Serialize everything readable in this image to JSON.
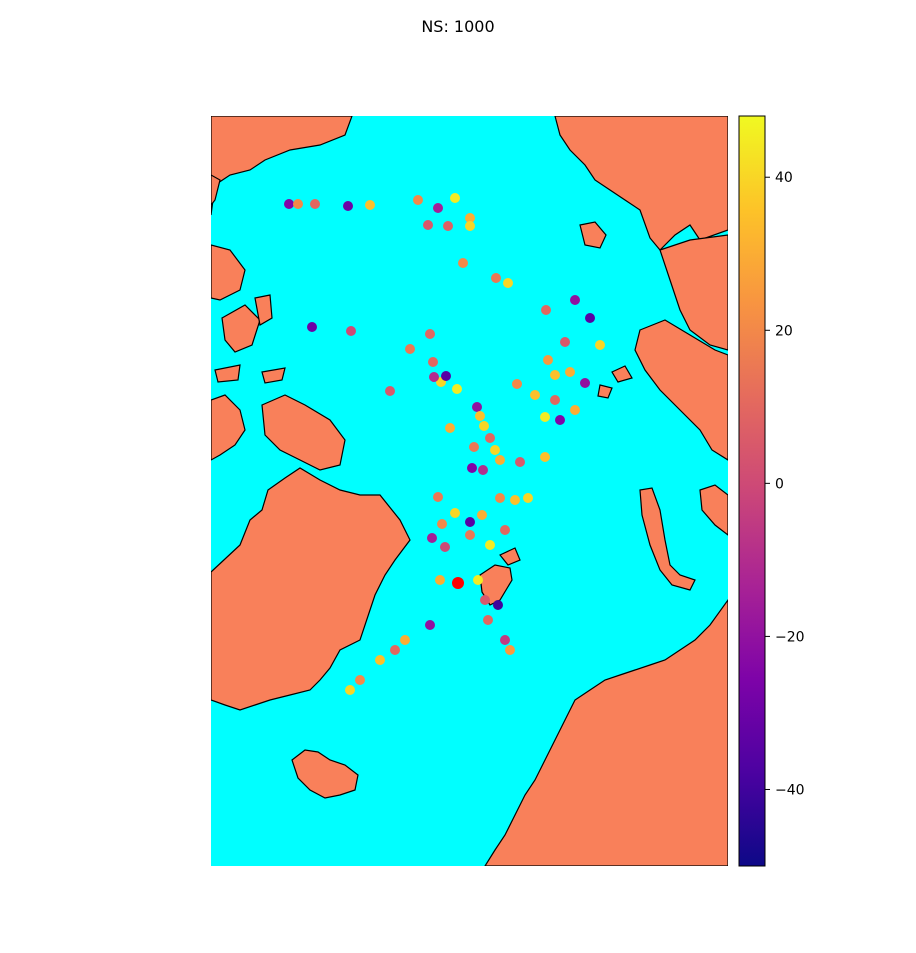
{
  "chart_data": {
    "type": "scatter",
    "title": "NS: 1000",
    "map": {
      "region": "North Atlantic / Arctic (Greenland, Iceland, Norway, Svalbard)",
      "land_color": "#f9805a",
      "ocean_color": "#00ffff",
      "coastline_color": "#000000"
    },
    "colorbar": {
      "colormap": "plasma",
      "range": [
        -50,
        48
      ],
      "ticks": [
        -40,
        -20,
        0,
        20,
        40
      ],
      "tick_labels": [
        "−40",
        "−20",
        "0",
        "20",
        "40"
      ],
      "position": "right"
    },
    "highlight_marker_color": "#ff0000",
    "series": [
      {
        "values": [
          -25,
          20,
          10,
          -30,
          35,
          20,
          -15,
          45,
          5,
          8,
          30,
          40,
          20,
          15,
          40,
          10,
          -20,
          -35,
          40,
          5,
          25,
          30,
          -20,
          35,
          35,
          10,
          30,
          -25,
          45,
          -30,
          0,
          10,
          15,
          10,
          40,
          -35,
          45,
          -10,
          5,
          20,
          -20,
          35,
          40,
          30,
          10,
          40,
          15,
          -25,
          -10,
          30,
          5,
          35,
          15,
          40,
          -35,
          30,
          20,
          35,
          40,
          10,
          20,
          -15,
          0,
          15,
          45,
          30,
          45,
          5,
          -40,
          10,
          -5,
          25,
          -20,
          30,
          10,
          35,
          20,
          40
        ]
      }
    ]
  }
}
